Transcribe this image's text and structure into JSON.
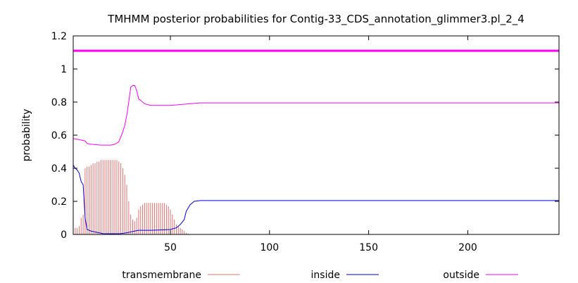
{
  "chart_data": {
    "type": "line",
    "title": "TMHMM posterior probabilities for Contig-33_CDS_annotation_glimmer3.pl_2_4",
    "xlabel": "",
    "ylabel": "probability",
    "xlim": [
      1,
      246
    ],
    "ylim": [
      0,
      1.2
    ],
    "grid": false,
    "legend_position": "bottom",
    "x_ticks": [
      50,
      100,
      150,
      200
    ],
    "y_ticks": [
      0,
      0.2,
      0.4,
      0.6,
      0.8,
      1,
      1.2
    ],
    "x_tick_labels": [
      "50",
      "100",
      "150",
      "200"
    ],
    "y_tick_labels": [
      "0",
      "0.2",
      "0.4",
      "0.6",
      "0.8",
      "1",
      "1.2"
    ],
    "reference_line": {
      "y": 1.11,
      "color": "#ff00ff"
    },
    "series": [
      {
        "name": "transmembrane",
        "style": "impulses",
        "color": "#e07070",
        "points": [
          [
            1,
            0.03
          ],
          [
            2,
            0.04
          ],
          [
            3,
            0.04
          ],
          [
            4,
            0.05
          ],
          [
            5,
            0.1
          ],
          [
            6,
            0.12
          ],
          [
            7,
            0.4
          ],
          [
            8,
            0.41
          ],
          [
            9,
            0.41
          ],
          [
            10,
            0.42
          ],
          [
            11,
            0.43
          ],
          [
            12,
            0.43
          ],
          [
            13,
            0.44
          ],
          [
            14,
            0.44
          ],
          [
            15,
            0.45
          ],
          [
            16,
            0.45
          ],
          [
            17,
            0.45
          ],
          [
            18,
            0.45
          ],
          [
            19,
            0.45
          ],
          [
            20,
            0.45
          ],
          [
            21,
            0.45
          ],
          [
            22,
            0.45
          ],
          [
            23,
            0.45
          ],
          [
            24,
            0.44
          ],
          [
            25,
            0.43
          ],
          [
            26,
            0.4
          ],
          [
            27,
            0.36
          ],
          [
            28,
            0.3
          ],
          [
            29,
            0.2
          ],
          [
            30,
            0.12
          ],
          [
            31,
            0.09
          ],
          [
            32,
            0.08
          ],
          [
            33,
            0.1
          ],
          [
            34,
            0.15
          ],
          [
            35,
            0.17
          ],
          [
            36,
            0.18
          ],
          [
            37,
            0.19
          ],
          [
            38,
            0.19
          ],
          [
            39,
            0.19
          ],
          [
            40,
            0.19
          ],
          [
            41,
            0.19
          ],
          [
            42,
            0.19
          ],
          [
            43,
            0.19
          ],
          [
            44,
            0.19
          ],
          [
            45,
            0.19
          ],
          [
            46,
            0.19
          ],
          [
            47,
            0.19
          ],
          [
            48,
            0.18
          ],
          [
            49,
            0.17
          ],
          [
            50,
            0.15
          ],
          [
            51,
            0.12
          ],
          [
            52,
            0.09
          ],
          [
            53,
            0.06
          ],
          [
            54,
            0.05
          ],
          [
            55,
            0.04
          ],
          [
            56,
            0.03
          ],
          [
            57,
            0.02
          ],
          [
            58,
            0.01
          ],
          [
            59,
            0.005
          ],
          [
            60,
            0.002
          ]
        ]
      },
      {
        "name": "inside",
        "style": "line",
        "color": "#0000dd",
        "points": [
          [
            1,
            0.42
          ],
          [
            2,
            0.4
          ],
          [
            3,
            0.39
          ],
          [
            4,
            0.37
          ],
          [
            5,
            0.32
          ],
          [
            6,
            0.3
          ],
          [
            7,
            0.1
          ],
          [
            8,
            0.03
          ],
          [
            9,
            0.025
          ],
          [
            10,
            0.02
          ],
          [
            12,
            0.015
          ],
          [
            14,
            0.01
          ],
          [
            16,
            0.005
          ],
          [
            20,
            0.004
          ],
          [
            25,
            0.005
          ],
          [
            28,
            0.01
          ],
          [
            30,
            0.015
          ],
          [
            32,
            0.02
          ],
          [
            34,
            0.025
          ],
          [
            40,
            0.025
          ],
          [
            45,
            0.027
          ],
          [
            50,
            0.03
          ],
          [
            53,
            0.04
          ],
          [
            55,
            0.06
          ],
          [
            57,
            0.09
          ],
          [
            58,
            0.14
          ],
          [
            59,
            0.16
          ],
          [
            60,
            0.18
          ],
          [
            62,
            0.2
          ],
          [
            65,
            0.205
          ],
          [
            70,
            0.205
          ],
          [
            100,
            0.205
          ],
          [
            150,
            0.205
          ],
          [
            200,
            0.205
          ],
          [
            246,
            0.205
          ]
        ]
      },
      {
        "name": "outside",
        "style": "line",
        "color": "#ff00ff",
        "points": [
          [
            1,
            0.58
          ],
          [
            3,
            0.575
          ],
          [
            5,
            0.57
          ],
          [
            7,
            0.565
          ],
          [
            8,
            0.55
          ],
          [
            10,
            0.545
          ],
          [
            15,
            0.54
          ],
          [
            20,
            0.54
          ],
          [
            22,
            0.545
          ],
          [
            24,
            0.56
          ],
          [
            25,
            0.59
          ],
          [
            26,
            0.62
          ],
          [
            27,
            0.66
          ],
          [
            28,
            0.72
          ],
          [
            29,
            0.8
          ],
          [
            30,
            0.89
          ],
          [
            31,
            0.9
          ],
          [
            32,
            0.9
          ],
          [
            33,
            0.87
          ],
          [
            34,
            0.82
          ],
          [
            35,
            0.81
          ],
          [
            37,
            0.79
          ],
          [
            40,
            0.78
          ],
          [
            45,
            0.78
          ],
          [
            50,
            0.78
          ],
          [
            55,
            0.785
          ],
          [
            60,
            0.79
          ],
          [
            65,
            0.795
          ],
          [
            100,
            0.795
          ],
          [
            150,
            0.795
          ],
          [
            200,
            0.795
          ],
          [
            246,
            0.795
          ]
        ]
      }
    ]
  }
}
